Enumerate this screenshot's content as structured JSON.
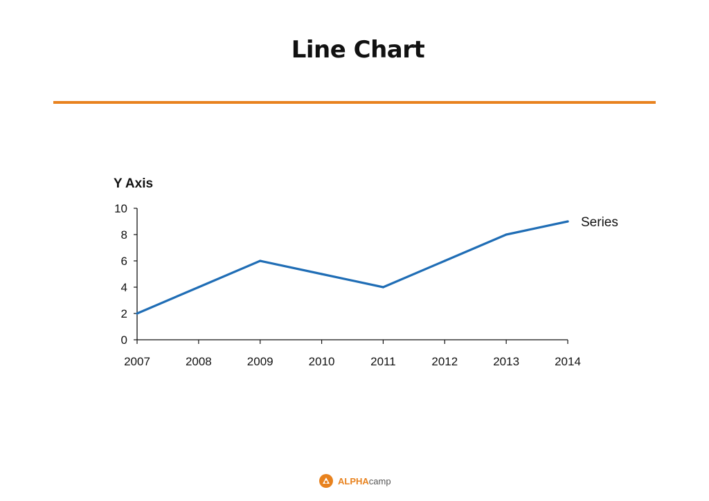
{
  "slide": {
    "title": "Line Chart",
    "accent_color": "#e8821e",
    "footer_logo": {
      "icon": "alphacamp-logo-icon",
      "text_bold": "ALPHA",
      "text_regular": "camp"
    }
  },
  "chart_data": {
    "type": "line",
    "title": "",
    "xlabel": "",
    "ylabel": "Y Axis",
    "ylim": [
      0,
      10
    ],
    "yticks": [
      0,
      2,
      4,
      6,
      8,
      10
    ],
    "x": [
      "2007",
      "2008",
      "2009",
      "2010",
      "2011",
      "2012",
      "2013",
      "2014"
    ],
    "series": [
      {
        "name": "Series",
        "values": [
          2,
          4,
          6,
          5,
          4,
          6,
          8,
          9
        ],
        "color": "#1f6db5"
      }
    ],
    "grid": false,
    "legend": "end-of-line label"
  }
}
